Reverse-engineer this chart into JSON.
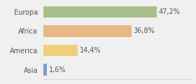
{
  "categories": [
    "Europa",
    "Africa",
    "America",
    "Asia"
  ],
  "values": [
    47.2,
    36.8,
    14.4,
    1.6
  ],
  "labels": [
    "47,2%",
    "36,8%",
    "14,4%",
    "1,6%"
  ],
  "bar_colors": [
    "#a8bf8a",
    "#e8b882",
    "#f0cf7a",
    "#7a9ecf"
  ],
  "background_color": "#f0f0f0",
  "xlim": [
    0,
    62
  ],
  "bar_height": 0.6,
  "label_fontsize": 7.0,
  "category_fontsize": 7.0
}
